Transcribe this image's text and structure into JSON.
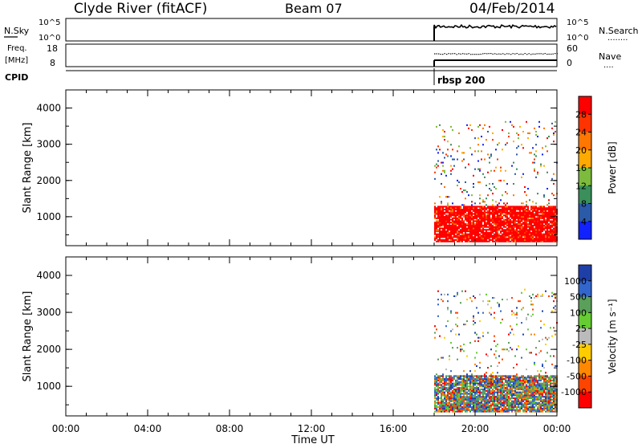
{
  "header": {
    "station": "Clyde River (fitACF)",
    "beam": "Beam 07",
    "date": "04/Feb/2014"
  },
  "status_panels": {
    "nsky": {
      "label": "N.Sky",
      "ticks": [
        "10^5",
        "10^0"
      ]
    },
    "nsearch": {
      "label": "N.Search",
      "ticks": [
        "10^5",
        "10^0"
      ],
      "dots": "........"
    },
    "freq": {
      "label_line1": "Freq.",
      "label_line2": "[MHz]",
      "ticks": [
        "18",
        "8"
      ]
    },
    "nave": {
      "label": "Nave",
      "ticks": [
        "60",
        "0"
      ],
      "dots": "...."
    },
    "cpid": {
      "label": "CPID",
      "value": "rbsp 200"
    }
  },
  "chart_data": [
    {
      "type": "heatmap",
      "title": "Power",
      "ylabel": "Slant Range [km]",
      "xlabel": "",
      "x_ticks": [
        "00:00",
        "04:00",
        "08:00",
        "12:00",
        "16:00",
        "20:00",
        "00:00"
      ],
      "y_ticks": [
        4000,
        3000,
        2000,
        1000
      ],
      "ylim": [
        200,
        4500
      ],
      "xlim_hours": [
        0,
        24
      ],
      "colorbar": {
        "label": "Power [dB]",
        "ticks": [
          "28",
          "24",
          "20",
          "16",
          "12",
          "8",
          "4"
        ],
        "colors": [
          "#ff0000",
          "#ff3300",
          "#ff7700",
          "#ffaa00",
          "#7dbb3c",
          "#3a8f5a",
          "#2b5aa8",
          "#1122ff"
        ]
      },
      "data_start_hour": 18.0,
      "data_end_hour": 24.0
    },
    {
      "type": "heatmap",
      "title": "Velocity",
      "ylabel": "Slant Range [km]",
      "xlabel": "Time UT",
      "x_ticks": [
        "00:00",
        "04:00",
        "08:00",
        "12:00",
        "16:00",
        "20:00",
        "00:00"
      ],
      "y_ticks": [
        4000,
        3000,
        2000,
        1000
      ],
      "ylim": [
        200,
        4500
      ],
      "xlim_hours": [
        0,
        24
      ],
      "colorbar": {
        "label": "Velocity [m s⁻¹]",
        "ticks": [
          "1000",
          "500",
          "100",
          "25",
          "-25",
          "-100",
          "-500",
          "-1000"
        ],
        "colors": [
          "#1f3fa8",
          "#3366cc",
          "#5aa05a",
          "#66cc33",
          "#bbbbbb",
          "#ffcc00",
          "#ff8800",
          "#ff4400",
          "#ff0000"
        ]
      },
      "data_start_hour": 18.0,
      "data_end_hour": 24.0
    }
  ]
}
